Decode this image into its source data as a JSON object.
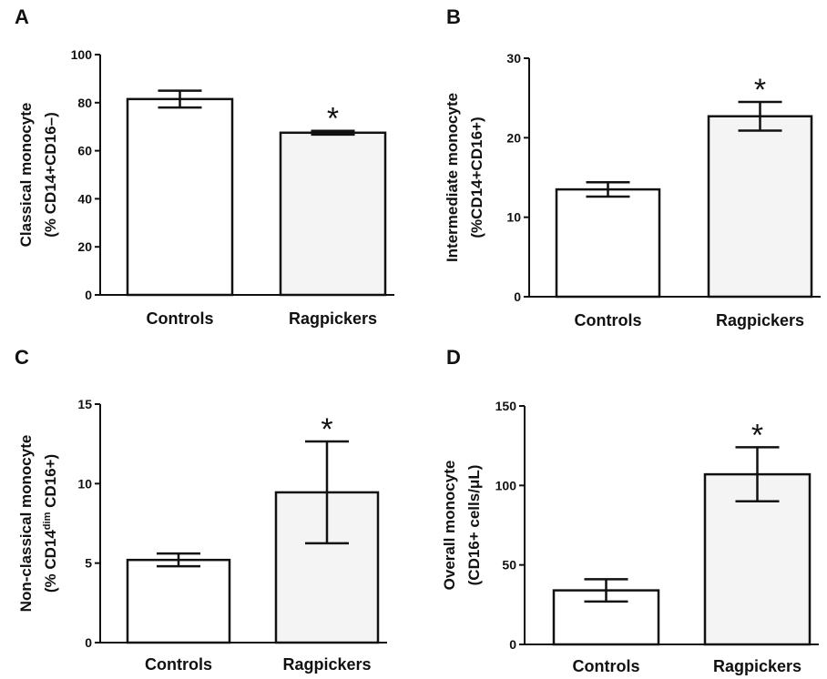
{
  "chart_data": [
    {
      "type": "bar",
      "panel": "A",
      "categories": [
        "Controls",
        "Ragpickers"
      ],
      "values": [
        81.5,
        67.5
      ],
      "errors": [
        3.5,
        0.8
      ],
      "significance": [
        "",
        "*"
      ],
      "ylabel_lines": [
        "Classical monocyte",
        "(% CD14+CD16–)"
      ],
      "ylim": [
        0,
        100
      ],
      "yticks": [
        0,
        20,
        40,
        60,
        80,
        100
      ],
      "bar_fills": [
        "#ffffff",
        "#f4f4f4"
      ]
    },
    {
      "type": "bar",
      "panel": "B",
      "categories": [
        "Controls",
        "Ragpickers"
      ],
      "values": [
        13.5,
        22.7
      ],
      "errors": [
        0.9,
        1.8
      ],
      "significance": [
        "",
        "*"
      ],
      "ylabel_lines": [
        "Intermediate monocyte",
        "(%CD14+CD16+)"
      ],
      "ylim": [
        0,
        30
      ],
      "yticks": [
        0,
        10,
        20,
        30
      ],
      "bar_fills": [
        "#ffffff",
        "#f4f4f4"
      ]
    },
    {
      "type": "bar",
      "panel": "C",
      "categories": [
        "Controls",
        "Ragpickers"
      ],
      "values": [
        5.2,
        9.45
      ],
      "errors": [
        0.4,
        3.2
      ],
      "significance": [
        "",
        "*"
      ],
      "ylabel_lines": [
        "Non-classical monocyte",
        "(% CD14^dim CD16+)"
      ],
      "ylabel_parts": [
        [
          "(% CD14",
          "normal"
        ],
        [
          "dim",
          "sup"
        ],
        [
          " CD16+)",
          "normal"
        ]
      ],
      "ylim": [
        0,
        15
      ],
      "yticks": [
        0,
        5,
        10,
        15
      ],
      "bar_fills": [
        "#ffffff",
        "#f4f4f4"
      ]
    },
    {
      "type": "bar",
      "panel": "D",
      "categories": [
        "Controls",
        "Ragpickers"
      ],
      "values": [
        34,
        107
      ],
      "errors": [
        7,
        17
      ],
      "significance": [
        "",
        "*"
      ],
      "ylabel_lines": [
        "Overall monocyte",
        "(CD16+ cells/μL)"
      ],
      "ylim": [
        0,
        150
      ],
      "yticks": [
        0,
        50,
        100,
        150
      ],
      "bar_fills": [
        "#ffffff",
        "#f4f4f4"
      ]
    }
  ]
}
